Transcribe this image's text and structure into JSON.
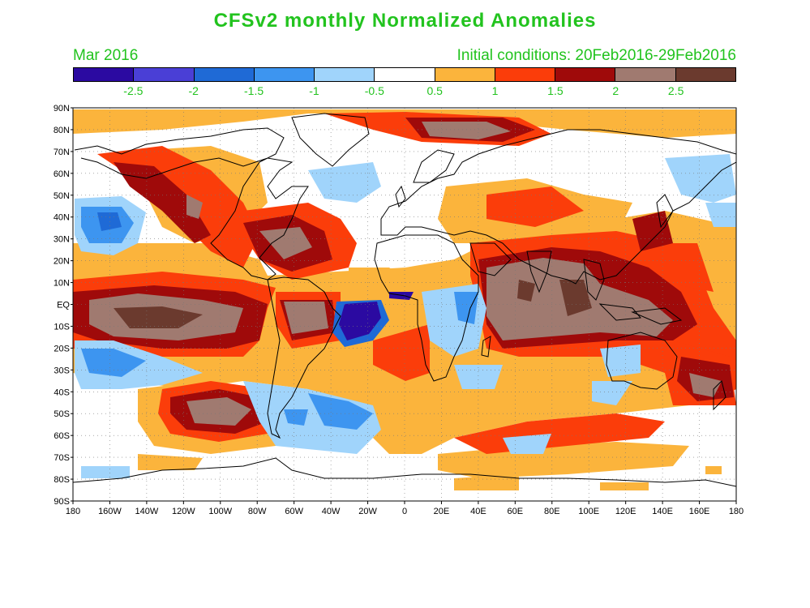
{
  "title": "CFSv2 monthly Normalized Anomalies",
  "subtitle_left": "Mar 2016",
  "subtitle_right": "Initial conditions: 20Feb2016-29Feb2016",
  "colorbar": {
    "colors": [
      "#2b0aa1",
      "#4a3fd6",
      "#1f6ad6",
      "#3d95f0",
      "#a0d4fb",
      "#ffffff",
      "#fbb43c",
      "#fb3d0a",
      "#9f0a0a",
      "#a07a70",
      "#6b3a2e"
    ],
    "labels": [
      "-2.5",
      "-2",
      "-1.5",
      "-1",
      "-0.5",
      "0.5",
      "1",
      "1.5",
      "2",
      "2.5"
    ]
  },
  "axes": {
    "lat_labels": [
      "90N",
      "80N",
      "70N",
      "60N",
      "50N",
      "40N",
      "30N",
      "20N",
      "10N",
      "EQ",
      "10S",
      "20S",
      "30S",
      "40S",
      "50S",
      "60S",
      "70S",
      "80S",
      "90S"
    ],
    "lon_labels": [
      "180",
      "160W",
      "140W",
      "120W",
      "100W",
      "80W",
      "60W",
      "40W",
      "20W",
      "0",
      "20E",
      "40E",
      "60E",
      "80E",
      "100E",
      "120E",
      "140E",
      "160E",
      "180"
    ]
  }
}
